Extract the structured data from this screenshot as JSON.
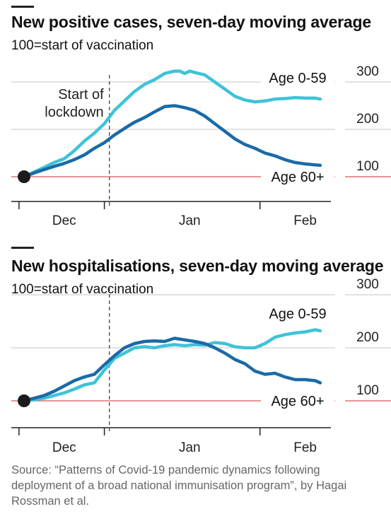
{
  "chart_data": [
    {
      "type": "line",
      "title": "New positive cases, seven-day moving average",
      "subtitle": "100=start of vaccination",
      "x_ticks": [
        "Dec",
        "Jan",
        "Feb"
      ],
      "y_ticks": [
        100,
        200,
        300
      ],
      "ylim": [
        40,
        340
      ],
      "xlim": [
        0,
        60
      ],
      "grid": true,
      "baseline": 100,
      "x_month_boundaries": [
        -1,
        16,
        47
      ],
      "x_tick_positions": [
        8,
        33,
        56
      ],
      "annotation": {
        "text": [
          "Start of",
          "lockdown"
        ],
        "x": 17
      },
      "series": [
        {
          "name": "Age 0-59",
          "color": "#3ec3d7",
          "x": [
            0,
            2,
            4,
            6,
            8,
            10,
            12,
            14,
            16,
            18,
            20,
            22,
            24,
            26,
            28,
            30,
            31,
            32,
            33,
            34,
            36,
            38,
            40,
            42,
            44,
            46,
            48,
            50,
            52,
            54,
            56,
            58,
            59
          ],
          "values": [
            100,
            110,
            120,
            130,
            138,
            155,
            175,
            192,
            212,
            240,
            260,
            280,
            295,
            305,
            318,
            323,
            323,
            318,
            323,
            320,
            315,
            300,
            285,
            270,
            262,
            258,
            260,
            264,
            265,
            267,
            266,
            266,
            264
          ]
        },
        {
          "name": "Age 60+",
          "color": "#1a6aa7",
          "x": [
            0,
            2,
            4,
            6,
            8,
            10,
            12,
            14,
            16,
            18,
            20,
            22,
            24,
            26,
            28,
            30,
            32,
            34,
            36,
            38,
            40,
            42,
            44,
            46,
            48,
            50,
            52,
            54,
            56,
            58,
            59
          ],
          "values": [
            100,
            108,
            115,
            122,
            128,
            136,
            146,
            160,
            172,
            188,
            202,
            215,
            225,
            237,
            248,
            250,
            246,
            240,
            228,
            212,
            196,
            180,
            168,
            160,
            150,
            144,
            136,
            130,
            127,
            125,
            124
          ]
        }
      ]
    },
    {
      "type": "line",
      "title": "New hospitalisations, seven-day moving average",
      "subtitle": "100=start of vaccination",
      "x_ticks": [
        "Dec",
        "Jan",
        "Feb"
      ],
      "y_ticks": [
        100,
        200,
        300
      ],
      "ylim": [
        40,
        340
      ],
      "xlim": [
        0,
        60
      ],
      "grid": true,
      "baseline": 100,
      "x_month_boundaries": [
        -1,
        16,
        47
      ],
      "x_tick_positions": [
        8,
        33,
        56
      ],
      "annotation": {
        "text": [],
        "x": 17
      },
      "series": [
        {
          "name": "Age 0-59",
          "color": "#3ec3d7",
          "x": [
            0,
            2,
            4,
            6,
            8,
            10,
            12,
            14,
            16,
            18,
            20,
            22,
            24,
            26,
            28,
            30,
            32,
            34,
            36,
            38,
            40,
            42,
            44,
            46,
            48,
            50,
            52,
            54,
            56,
            58,
            59
          ],
          "values": [
            100,
            102,
            105,
            110,
            115,
            122,
            130,
            134,
            158,
            180,
            190,
            200,
            202,
            200,
            204,
            206,
            204,
            206,
            205,
            210,
            208,
            202,
            200,
            200,
            208,
            220,
            225,
            228,
            230,
            234,
            232
          ]
        },
        {
          "name": "Age 60+",
          "color": "#1a6aa7",
          "x": [
            0,
            2,
            4,
            6,
            8,
            10,
            12,
            14,
            16,
            18,
            20,
            22,
            24,
            26,
            28,
            30,
            32,
            34,
            36,
            38,
            40,
            42,
            44,
            46,
            48,
            50,
            52,
            54,
            56,
            58,
            59
          ],
          "values": [
            100,
            105,
            110,
            118,
            128,
            138,
            145,
            150,
            168,
            185,
            200,
            208,
            212,
            213,
            212,
            218,
            215,
            212,
            208,
            200,
            190,
            178,
            170,
            156,
            150,
            152,
            145,
            140,
            140,
            138,
            134
          ]
        }
      ]
    }
  ],
  "source": "Source: “Patterns of Covid-19 pandemic dynamics following deployment of a broad national immunisation program”, by Hagai Rossman et al."
}
